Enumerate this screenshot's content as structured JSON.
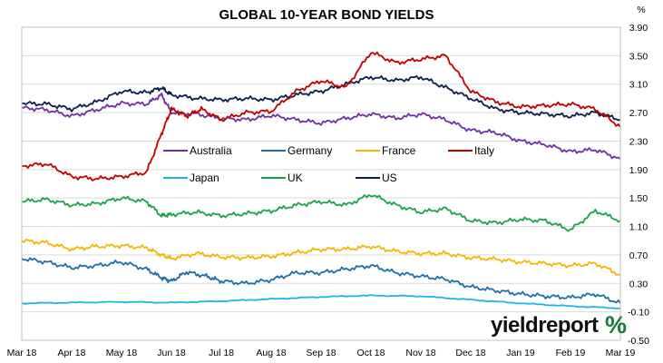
{
  "chart_data": {
    "type": "line",
    "title": "GLOBAL 10-YEAR BOND YIELDS",
    "ylabel": "%",
    "ylim": [
      -0.5,
      3.9
    ],
    "yticks": [
      "3.90",
      "3.50",
      "3.10",
      "2.70",
      "2.30",
      "1.90",
      "1.50",
      "1.10",
      "0.70",
      "0.30",
      "-0.10",
      "-0.50"
    ],
    "x_labels": [
      "Mar 18",
      "Apr 18",
      "May 18",
      "Jun 18",
      "Jul 18",
      "Aug 18",
      "Sep 18",
      "Oct 18",
      "Nov 18",
      "Dec 18",
      "Jan 19",
      "Feb 19",
      "Mar 19"
    ],
    "grid": true,
    "legend": "inside-center",
    "series": [
      {
        "name": "Australia",
        "color": "#7030a0",
        "points": [
          [
            0,
            2.77
          ],
          [
            0.5,
            2.74
          ],
          [
            1,
            2.65
          ],
          [
            1.5,
            2.74
          ],
          [
            2,
            2.83
          ],
          [
            2.5,
            2.82
          ],
          [
            2.8,
            2.95
          ],
          [
            3,
            2.7
          ],
          [
            3.5,
            2.68
          ],
          [
            4,
            2.62
          ],
          [
            4.5,
            2.6
          ],
          [
            5,
            2.66
          ],
          [
            5.5,
            2.6
          ],
          [
            6,
            2.55
          ],
          [
            6.5,
            2.62
          ],
          [
            7,
            2.68
          ],
          [
            7.5,
            2.62
          ],
          [
            8,
            2.68
          ],
          [
            8.5,
            2.6
          ],
          [
            9,
            2.45
          ],
          [
            9.5,
            2.42
          ],
          [
            10,
            2.3
          ],
          [
            10.5,
            2.25
          ],
          [
            11,
            2.15
          ],
          [
            11.5,
            2.18
          ],
          [
            12,
            2.05
          ]
        ]
      },
      {
        "name": "Germany",
        "color": "#1f6fa5",
        "points": [
          [
            0,
            0.65
          ],
          [
            0.5,
            0.6
          ],
          [
            1,
            0.52
          ],
          [
            1.5,
            0.55
          ],
          [
            2,
            0.6
          ],
          [
            2.5,
            0.5
          ],
          [
            2.8,
            0.38
          ],
          [
            3,
            0.33
          ],
          [
            3.3,
            0.46
          ],
          [
            3.7,
            0.4
          ],
          [
            4,
            0.33
          ],
          [
            4.5,
            0.3
          ],
          [
            5,
            0.35
          ],
          [
            5.5,
            0.45
          ],
          [
            6,
            0.45
          ],
          [
            6.5,
            0.5
          ],
          [
            7,
            0.55
          ],
          [
            7.5,
            0.45
          ],
          [
            8,
            0.4
          ],
          [
            8.5,
            0.36
          ],
          [
            9,
            0.25
          ],
          [
            9.5,
            0.2
          ],
          [
            10,
            0.15
          ],
          [
            10.5,
            0.12
          ],
          [
            11,
            0.1
          ],
          [
            11.5,
            0.15
          ],
          [
            12,
            0.02
          ]
        ]
      },
      {
        "name": "France",
        "color": "#f2b705",
        "points": [
          [
            0,
            0.9
          ],
          [
            0.5,
            0.87
          ],
          [
            1,
            0.78
          ],
          [
            1.5,
            0.82
          ],
          [
            2,
            0.83
          ],
          [
            2.5,
            0.8
          ],
          [
            2.8,
            0.7
          ],
          [
            3,
            0.65
          ],
          [
            3.5,
            0.72
          ],
          [
            4,
            0.67
          ],
          [
            4.5,
            0.66
          ],
          [
            5,
            0.68
          ],
          [
            5.5,
            0.73
          ],
          [
            6,
            0.78
          ],
          [
            6.5,
            0.78
          ],
          [
            7,
            0.82
          ],
          [
            7.5,
            0.75
          ],
          [
            8,
            0.72
          ],
          [
            8.5,
            0.72
          ],
          [
            9,
            0.66
          ],
          [
            9.5,
            0.64
          ],
          [
            10,
            0.6
          ],
          [
            10.5,
            0.58
          ],
          [
            11,
            0.55
          ],
          [
            11.5,
            0.58
          ],
          [
            12,
            0.42
          ]
        ]
      },
      {
        "name": "Italy",
        "color": "#c00000",
        "points": [
          [
            0,
            1.95
          ],
          [
            0.5,
            1.98
          ],
          [
            1,
            1.8
          ],
          [
            1.5,
            1.77
          ],
          [
            2,
            1.8
          ],
          [
            2.5,
            1.86
          ],
          [
            2.8,
            2.4
          ],
          [
            3,
            2.75
          ],
          [
            3.3,
            2.65
          ],
          [
            3.6,
            2.75
          ],
          [
            4,
            2.6
          ],
          [
            4.5,
            2.7
          ],
          [
            5,
            2.72
          ],
          [
            5.5,
            3.0
          ],
          [
            6,
            3.15
          ],
          [
            6.5,
            3.05
          ],
          [
            7,
            3.55
          ],
          [
            7.5,
            3.4
          ],
          [
            8,
            3.45
          ],
          [
            8.5,
            3.5
          ],
          [
            9,
            3.0
          ],
          [
            9.5,
            2.85
          ],
          [
            10,
            2.78
          ],
          [
            10.5,
            2.8
          ],
          [
            11,
            2.82
          ],
          [
            11.5,
            2.75
          ],
          [
            12,
            2.5
          ]
        ]
      },
      {
        "name": "Japan",
        "color": "#1fb4e8",
        "points": [
          [
            0,
            0.02
          ],
          [
            1,
            0.03
          ],
          [
            2,
            0.04
          ],
          [
            3,
            0.03
          ],
          [
            4,
            0.05
          ],
          [
            5,
            0.08
          ],
          [
            6,
            0.11
          ],
          [
            7,
            0.13
          ],
          [
            8,
            0.12
          ],
          [
            9,
            0.07
          ],
          [
            10,
            0.02
          ],
          [
            11,
            -0.02
          ],
          [
            12,
            -0.05
          ]
        ]
      },
      {
        "name": "UK",
        "color": "#1aa34a",
        "points": [
          [
            0,
            1.45
          ],
          [
            0.5,
            1.48
          ],
          [
            1,
            1.4
          ],
          [
            1.5,
            1.42
          ],
          [
            2,
            1.5
          ],
          [
            2.5,
            1.45
          ],
          [
            2.8,
            1.25
          ],
          [
            3,
            1.27
          ],
          [
            3.5,
            1.3
          ],
          [
            4,
            1.25
          ],
          [
            4.5,
            1.28
          ],
          [
            5,
            1.32
          ],
          [
            5.5,
            1.4
          ],
          [
            6,
            1.45
          ],
          [
            6.5,
            1.4
          ],
          [
            7,
            1.55
          ],
          [
            7.5,
            1.4
          ],
          [
            8,
            1.3
          ],
          [
            8.5,
            1.35
          ],
          [
            9,
            1.18
          ],
          [
            9.5,
            1.15
          ],
          [
            10,
            1.2
          ],
          [
            10.5,
            1.18
          ],
          [
            11,
            1.05
          ],
          [
            11.5,
            1.32
          ],
          [
            12,
            1.18
          ]
        ]
      },
      {
        "name": "US",
        "color": "#0b1f4b",
        "points": [
          [
            0,
            2.83
          ],
          [
            0.5,
            2.82
          ],
          [
            1,
            2.75
          ],
          [
            1.5,
            2.85
          ],
          [
            2,
            3.0
          ],
          [
            2.5,
            2.98
          ],
          [
            2.8,
            3.05
          ],
          [
            3,
            2.95
          ],
          [
            3.5,
            2.9
          ],
          [
            4,
            2.88
          ],
          [
            4.5,
            2.9
          ],
          [
            5,
            2.88
          ],
          [
            5.5,
            2.95
          ],
          [
            6,
            3.0
          ],
          [
            6.5,
            3.1
          ],
          [
            7,
            3.2
          ],
          [
            7.5,
            3.15
          ],
          [
            8,
            3.2
          ],
          [
            8.5,
            3.05
          ],
          [
            9,
            2.9
          ],
          [
            9.5,
            2.75
          ],
          [
            10,
            2.7
          ],
          [
            10.5,
            2.68
          ],
          [
            11,
            2.65
          ],
          [
            11.5,
            2.7
          ],
          [
            12,
            2.6
          ]
        ]
      }
    ]
  },
  "brand": {
    "name": "yieldreport",
    "symbol": "%"
  }
}
